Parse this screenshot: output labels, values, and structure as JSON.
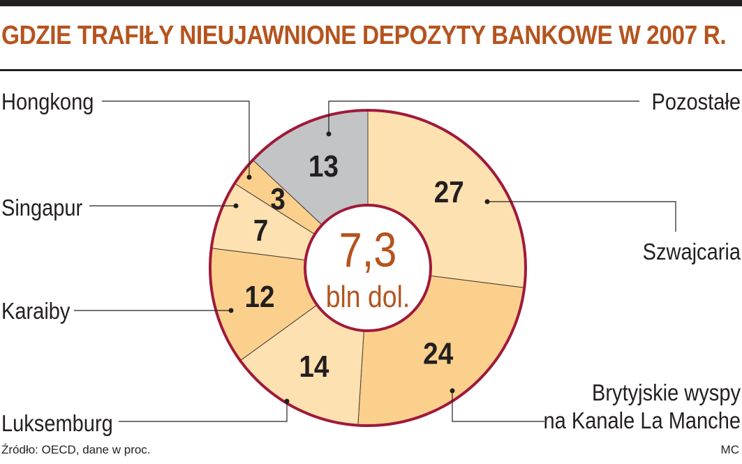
{
  "title": "GDZIE TRAFIŁY NIEUJAWNIONE DEPOZYTY BANKOWE W 2007 R.",
  "source": "Źródło: OECD, dane w proc.",
  "credit": "MC",
  "colors": {
    "title": "#b5531e",
    "ring": "#a0193a",
    "text": "#231f20",
    "center_value": "#b5531e",
    "light": "#fde1b1",
    "dark": "#fbd08d",
    "grey": "#c3c4c6"
  },
  "chart_data": {
    "type": "pie",
    "title": "GDZIE TRAFIŁY NIEUJAWNIONE DEPOZYTY BANKOWE W 2007 R.",
    "center_value": "7,3",
    "center_unit": "bln dol.",
    "unit": "proc.",
    "slices": [
      {
        "label": "Szwajcaria",
        "value": 27,
        "color": "#fde1b1"
      },
      {
        "label": "Brytyjskie wyspy na Kanale La Manche",
        "label_lines": [
          "Brytyjskie wyspy",
          "na Kanale La Manche"
        ],
        "value": 24,
        "color": "#fbd08d"
      },
      {
        "label": "Luksemburg",
        "value": 14,
        "color": "#fde1b1"
      },
      {
        "label": "Karaiby",
        "value": 12,
        "color": "#fbd08d"
      },
      {
        "label": "Singapur",
        "value": 7,
        "color": "#fde1b1"
      },
      {
        "label": "Hongkong",
        "value": 3,
        "color": "#fbd08d"
      },
      {
        "label": "Pozostałe",
        "value": 13,
        "color": "#c3c4c6"
      }
    ]
  }
}
